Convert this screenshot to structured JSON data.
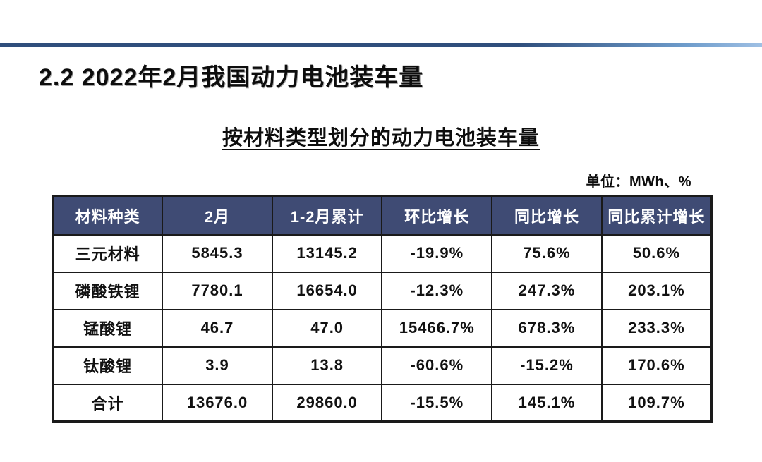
{
  "slide": {
    "title": "2.2 2022年2月我国动力电池装车量",
    "subtitle": "按材料类型划分的动力电池装车量",
    "unit_label": "单位：MWh、%"
  },
  "table": {
    "columns": [
      "材料种类",
      "2月",
      "1-2月累计",
      "环比增长",
      "同比增长",
      "同比累计增长"
    ],
    "rows": [
      [
        "三元材料",
        "5845.3",
        "13145.2",
        "-19.9%",
        "75.6%",
        "50.6%"
      ],
      [
        "磷酸铁锂",
        "7780.1",
        "16654.0",
        "-12.3%",
        "247.3%",
        "203.1%"
      ],
      [
        "锰酸锂",
        "46.7",
        "47.0",
        "15466.7%",
        "678.3%",
        "233.3%"
      ],
      [
        "钛酸锂",
        "3.9",
        "13.8",
        "-60.6%",
        "-15.2%",
        "170.6%"
      ],
      [
        "合计",
        "13676.0",
        "29860.0",
        "-15.5%",
        "145.1%",
        "109.7%"
      ]
    ]
  },
  "colors": {
    "header_bg": "#3F4B74",
    "header_text": "#FFFFFF",
    "body_text": "#111111",
    "table_border": "#1A1A1A",
    "top_rule_dark": "#2F4E7C",
    "top_rule_light": "#9FC0E4"
  }
}
